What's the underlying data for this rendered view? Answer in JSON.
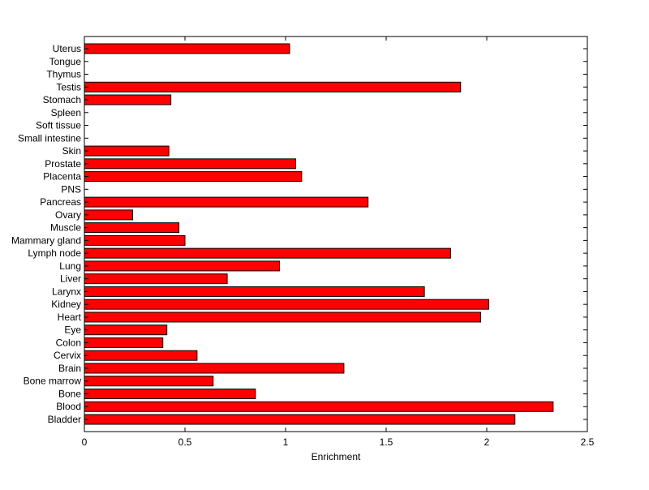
{
  "chart_data": {
    "type": "bar",
    "orientation": "horizontal",
    "title": "",
    "xlabel": "Enrichment",
    "ylabel": "",
    "xlim": [
      0,
      2.5
    ],
    "xticks": [
      0,
      0.5,
      1,
      1.5,
      2,
      2.5
    ],
    "xtick_labels": [
      "0",
      "0.5",
      "1",
      "1.5",
      "2",
      "2.5"
    ],
    "grid": false,
    "legend": "none",
    "bar_color": "#ff0000",
    "edge_color": "#000000",
    "categories": [
      "Bladder",
      "Blood",
      "Bone",
      "Bone marrow",
      "Brain",
      "Cervix",
      "Colon",
      "Eye",
      "Heart",
      "Kidney",
      "Larynx",
      "Liver",
      "Lung",
      "Lymph node",
      "Mammary gland",
      "Muscle",
      "Ovary",
      "Pancreas",
      "PNS",
      "Placenta",
      "Prostate",
      "Skin",
      "Small intestine",
      "Soft tissue",
      "Spleen",
      "Stomach",
      "Testis",
      "Thymus",
      "Tongue",
      "Uterus"
    ],
    "values": [
      2.14,
      2.33,
      0.85,
      0.64,
      1.29,
      0.56,
      0.39,
      0.41,
      1.97,
      2.01,
      1.69,
      0.71,
      0.97,
      1.82,
      0.5,
      0.47,
      0.24,
      1.41,
      0,
      1.08,
      1.05,
      0.42,
      0,
      0,
      0,
      0.43,
      1.87,
      0,
      0,
      1.02
    ]
  }
}
